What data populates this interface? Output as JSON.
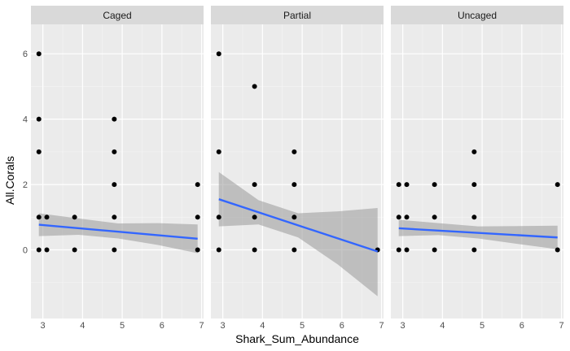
{
  "chart_data": {
    "type": "scatter",
    "xlabel": "Shark_Sum_Abundance",
    "ylabel": "All.Corals",
    "xlim": [
      2.7,
      7.05
    ],
    "ylim": [
      -2.1,
      6.9
    ],
    "x_ticks": [
      3,
      4,
      5,
      6,
      7
    ],
    "y_ticks": [
      0,
      2,
      4,
      6
    ],
    "grid": true,
    "colors": {
      "panel_bg": "#ebebeb",
      "strip_bg": "#d9d9d9",
      "grid_major": "#ffffff",
      "point": "#000000",
      "fit_line": "#3366ff",
      "ribbon": "#999999"
    },
    "panels": [
      {
        "name": "Caged",
        "points": [
          {
            "x": 2.9,
            "y": 0
          },
          {
            "x": 2.9,
            "y": 1
          },
          {
            "x": 2.9,
            "y": 3
          },
          {
            "x": 2.9,
            "y": 4
          },
          {
            "x": 2.9,
            "y": 6
          },
          {
            "x": 3.1,
            "y": 0
          },
          {
            "x": 3.1,
            "y": 1
          },
          {
            "x": 3.8,
            "y": 0
          },
          {
            "x": 3.8,
            "y": 1
          },
          {
            "x": 4.8,
            "y": 0
          },
          {
            "x": 4.8,
            "y": 1
          },
          {
            "x": 4.8,
            "y": 2
          },
          {
            "x": 4.8,
            "y": 3
          },
          {
            "x": 4.8,
            "y": 4
          },
          {
            "x": 6.9,
            "y": 0
          },
          {
            "x": 6.9,
            "y": 1
          },
          {
            "x": 6.9,
            "y": 2
          }
        ],
        "fit": {
          "x": [
            2.9,
            6.9
          ],
          "y": [
            0.77,
            0.34
          ]
        },
        "ci": {
          "x": [
            2.9,
            3.9,
            4.9,
            5.9,
            6.9
          ],
          "lower": [
            0.42,
            0.46,
            0.35,
            0.15,
            -0.1
          ],
          "upper": [
            1.12,
            0.96,
            0.81,
            0.82,
            0.78
          ]
        }
      },
      {
        "name": "Partial",
        "points": [
          {
            "x": 2.9,
            "y": 0
          },
          {
            "x": 2.9,
            "y": 1
          },
          {
            "x": 2.9,
            "y": 3
          },
          {
            "x": 2.9,
            "y": 6
          },
          {
            "x": 3.8,
            "y": 0
          },
          {
            "x": 3.8,
            "y": 1
          },
          {
            "x": 3.8,
            "y": 2
          },
          {
            "x": 3.8,
            "y": 5
          },
          {
            "x": 4.8,
            "y": 0
          },
          {
            "x": 4.8,
            "y": 1
          },
          {
            "x": 4.8,
            "y": 2
          },
          {
            "x": 4.8,
            "y": 3
          },
          {
            "x": 6.9,
            "y": 0
          }
        ],
        "fit": {
          "x": [
            2.9,
            6.9
          ],
          "y": [
            1.55,
            -0.05
          ]
        },
        "ci": {
          "x": [
            2.9,
            3.9,
            4.9,
            5.9,
            6.9
          ],
          "lower": [
            0.72,
            0.78,
            0.38,
            -0.45,
            -1.42
          ],
          "upper": [
            2.38,
            1.52,
            1.12,
            1.18,
            1.28
          ]
        }
      },
      {
        "name": "Uncaged",
        "points": [
          {
            "x": 2.9,
            "y": 0
          },
          {
            "x": 2.9,
            "y": 1
          },
          {
            "x": 2.9,
            "y": 2
          },
          {
            "x": 3.1,
            "y": 0
          },
          {
            "x": 3.1,
            "y": 1
          },
          {
            "x": 3.1,
            "y": 2
          },
          {
            "x": 3.8,
            "y": 0
          },
          {
            "x": 3.8,
            "y": 1
          },
          {
            "x": 3.8,
            "y": 2
          },
          {
            "x": 4.8,
            "y": 0
          },
          {
            "x": 4.8,
            "y": 1
          },
          {
            "x": 4.8,
            "y": 2
          },
          {
            "x": 4.8,
            "y": 3
          },
          {
            "x": 6.9,
            "y": 0
          },
          {
            "x": 6.9,
            "y": 2
          }
        ],
        "fit": {
          "x": [
            2.9,
            6.9
          ],
          "y": [
            0.66,
            0.38
          ]
        },
        "ci": {
          "x": [
            2.9,
            3.9,
            4.9,
            5.9,
            6.9
          ],
          "lower": [
            0.42,
            0.45,
            0.35,
            0.18,
            0.02
          ],
          "upper": [
            0.92,
            0.82,
            0.72,
            0.73,
            0.74
          ]
        }
      }
    ]
  }
}
